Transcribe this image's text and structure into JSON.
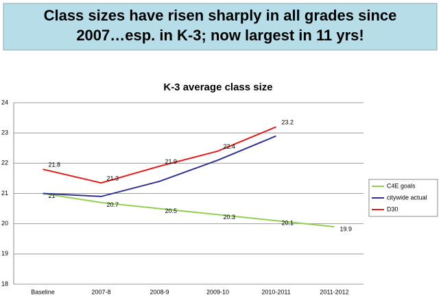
{
  "slide_title": [
    "Class sizes have risen sharply in all grades since",
    "2007…esp. in K-3; now largest in 11 yrs!"
  ],
  "chart_data": {
    "type": "line",
    "title": "K-3 average class size",
    "categories": [
      "Baseline",
      "2007-8",
      "2008-9",
      "2009-10",
      "2010-2011",
      "2011-2012"
    ],
    "series": [
      {
        "name": "C4E goals",
        "color": "#92d050",
        "values": [
          21,
          20.7,
          20.5,
          20.3,
          20.1,
          19.9
        ],
        "data_labels": true
      },
      {
        "name": "citywide actual",
        "color": "#2e3192",
        "values": [
          21,
          20.9,
          21.4,
          22.1,
          22.9,
          null
        ],
        "data_labels": false
      },
      {
        "name": "D30",
        "color": "#e31b1b",
        "values": [
          21.8,
          21.35,
          21.9,
          22.4,
          23.2,
          null
        ],
        "value_labels": [
          "21.8",
          "21.3",
          "21.9",
          "22.4",
          "23.2",
          null
        ],
        "data_labels": true
      }
    ],
    "ylim": [
      18,
      24
    ],
    "yticks": [
      18,
      19,
      20,
      21,
      22,
      23,
      24
    ],
    "grid": true,
    "legend": "right"
  }
}
